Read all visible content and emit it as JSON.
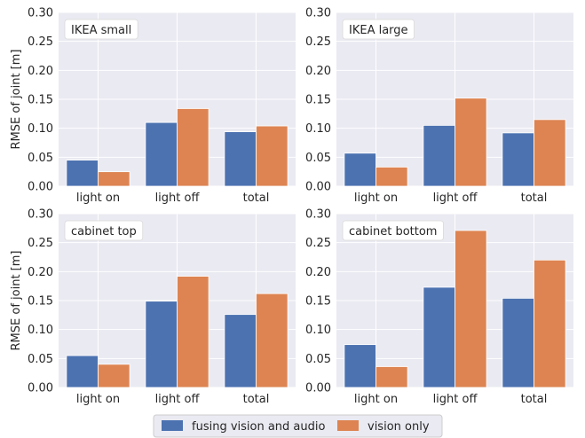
{
  "colors": {
    "background": "#ffffff",
    "plot_bg": "#eaeaf2",
    "grid": "#ffffff",
    "text": "#262626",
    "series": [
      "#4c72b0",
      "#dd8452"
    ]
  },
  "legend": {
    "placement": "bottom-center",
    "entries": [
      "fusing vision and audio",
      "vision only"
    ]
  },
  "chart_data": [
    {
      "type": "bar",
      "title": "IKEA small",
      "ylabel": "RMSE of joint [m]",
      "ylim": [
        0,
        0.3
      ],
      "yticks": [
        "0.00",
        "0.05",
        "0.10",
        "0.15",
        "0.20",
        "0.25",
        "0.30"
      ],
      "categories": [
        "light on",
        "light off",
        "total"
      ],
      "series": [
        {
          "name": "fusing vision and audio",
          "values": [
            0.045,
            0.11,
            0.094
          ]
        },
        {
          "name": "vision only",
          "values": [
            0.025,
            0.134,
            0.104
          ]
        }
      ]
    },
    {
      "type": "bar",
      "title": "IKEA large",
      "ylabel": "",
      "ylim": [
        0,
        0.3
      ],
      "yticks": [
        "0.00",
        "0.05",
        "0.10",
        "0.15",
        "0.20",
        "0.25",
        "0.30"
      ],
      "categories": [
        "light on",
        "light off",
        "total"
      ],
      "series": [
        {
          "name": "fusing vision and audio",
          "values": [
            0.057,
            0.105,
            0.092
          ]
        },
        {
          "name": "vision only",
          "values": [
            0.033,
            0.152,
            0.115
          ]
        }
      ]
    },
    {
      "type": "bar",
      "title": "cabinet top",
      "ylabel": "RMSE of joint [m]",
      "ylim": [
        0,
        0.3
      ],
      "yticks": [
        "0.00",
        "0.05",
        "0.10",
        "0.15",
        "0.20",
        "0.25",
        "0.30"
      ],
      "categories": [
        "light on",
        "light off",
        "total"
      ],
      "series": [
        {
          "name": "fusing vision and audio",
          "values": [
            0.055,
            0.149,
            0.126
          ]
        },
        {
          "name": "vision only",
          "values": [
            0.04,
            0.192,
            0.162
          ]
        }
      ]
    },
    {
      "type": "bar",
      "title": "cabinet bottom",
      "ylabel": "",
      "ylim": [
        0,
        0.3
      ],
      "yticks": [
        "0.00",
        "0.05",
        "0.10",
        "0.15",
        "0.20",
        "0.25",
        "0.30"
      ],
      "categories": [
        "light on",
        "light off",
        "total"
      ],
      "series": [
        {
          "name": "fusing vision and audio",
          "values": [
            0.074,
            0.173,
            0.154
          ]
        },
        {
          "name": "vision only",
          "values": [
            0.036,
            0.271,
            0.22
          ]
        }
      ]
    }
  ]
}
